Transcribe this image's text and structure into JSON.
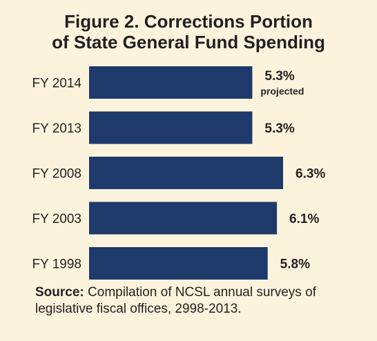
{
  "title_lines": [
    "Figure 2. Corrections Portion",
    "of State General Fund Spending"
  ],
  "source": {
    "label": "Source:",
    "text": "Compilation of NCSL annual surveys of legislative fiscal offices, 2998-2013."
  },
  "colors": {
    "bar": "#1d3a6b",
    "background": "#fcf3dc",
    "text": "#231f20"
  },
  "chart_data": {
    "type": "bar",
    "orientation": "horizontal",
    "title": "Figure 2. Corrections Portion of State General Fund Spending",
    "categories": [
      "FY 2014",
      "FY 2013",
      "FY 2008",
      "FY 2003",
      "FY 1998"
    ],
    "values": [
      5.3,
      5.3,
      6.3,
      6.1,
      5.8
    ],
    "value_labels": [
      "5.3%",
      "5.3%",
      "6.3%",
      "6.1%",
      "5.8%"
    ],
    "notes": [
      "projected",
      "",
      "",
      "",
      ""
    ],
    "unit": "%",
    "xlabel": "",
    "ylabel": "",
    "grid": false,
    "legend": "none"
  }
}
